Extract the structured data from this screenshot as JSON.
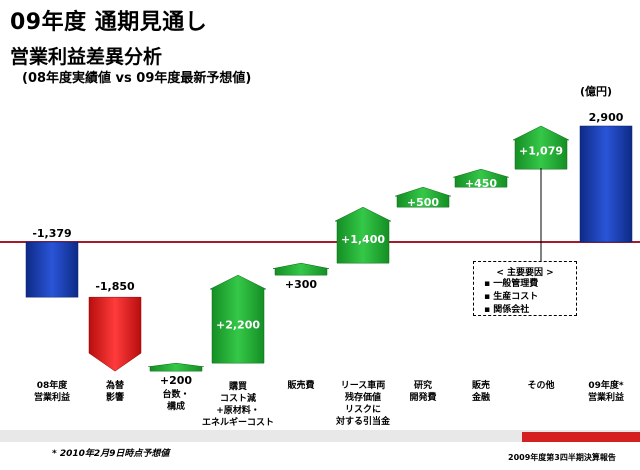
{
  "header": {
    "title": "09年度 通期見通し",
    "subtitle": "営業利益差異分析",
    "comparison": "(08年度実績値 vs 09年度最新予想値)",
    "unit": "(億円)"
  },
  "chart_data": {
    "type": "bar",
    "subtype": "waterfall",
    "baseline": 0,
    "categories": [
      [
        "08年度",
        "営業利益"
      ],
      [
        "為替",
        "影響"
      ],
      [
        "台数・",
        "構成"
      ],
      [
        "購買",
        "コスト減",
        "+原材料・",
        "エネルギーコスト"
      ],
      [
        "販売費"
      ],
      [
        "リース車両",
        "残存価値",
        "リスクに",
        "対する引当金"
      ],
      [
        "研究",
        "開発費"
      ],
      [
        "販売",
        "金融"
      ],
      [
        "その他"
      ],
      [
        "09年度*",
        "営業利益"
      ]
    ],
    "values": [
      -1379,
      -1850,
      200,
      2200,
      300,
      1400,
      500,
      450,
      1079,
      2900
    ],
    "kinds": [
      "total",
      "delta",
      "delta",
      "delta",
      "delta",
      "delta",
      "delta",
      "delta",
      "delta",
      "total"
    ],
    "labels": [
      "-1,379",
      "-1,850",
      "+200",
      "+2,200",
      "+300",
      "+1,400",
      "+500",
      "+450",
      "+1,079",
      "2,900"
    ],
    "colors": {
      "total": "#1a3fa8",
      "negative": "#e01818",
      "positive": "#22a832",
      "zero_line": "#a01c2c"
    },
    "annotation": {
      "title": "< 主要要因 >",
      "items": [
        "一般管理費",
        "生産コスト",
        "関係会社"
      ]
    }
  },
  "footer": {
    "note": "* 2010年2月9日時点予想値",
    "source": "2009年度第3四半期決算報告"
  }
}
